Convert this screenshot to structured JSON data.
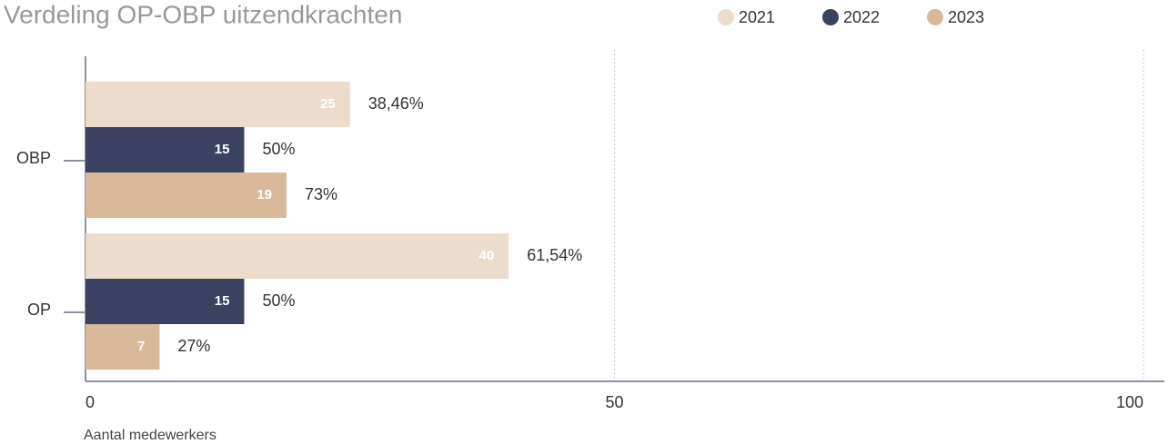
{
  "chart_data": {
    "type": "bar",
    "orientation": "horizontal",
    "title": "Verdeling OP-OBP uitzendkrachten",
    "x_label": "Aantal medewerkers",
    "categories": [
      "OBP",
      "OP"
    ],
    "series": [
      {
        "name": "2021",
        "color": "#ecdccb",
        "values": [
          25,
          40
        ],
        "annotations": [
          "38,46%",
          "61,54%"
        ]
      },
      {
        "name": "2022",
        "color": "#3b4160",
        "values": [
          15,
          15
        ],
        "annotations": [
          "50%",
          "50%"
        ]
      },
      {
        "name": "2023",
        "color": "#d9b999",
        "values": [
          19,
          7
        ],
        "annotations": [
          "73%",
          "27%"
        ]
      }
    ],
    "xlim": [
      0,
      100
    ],
    "xticks": [
      0,
      50,
      100
    ],
    "grid": true,
    "legend": "top-right"
  }
}
